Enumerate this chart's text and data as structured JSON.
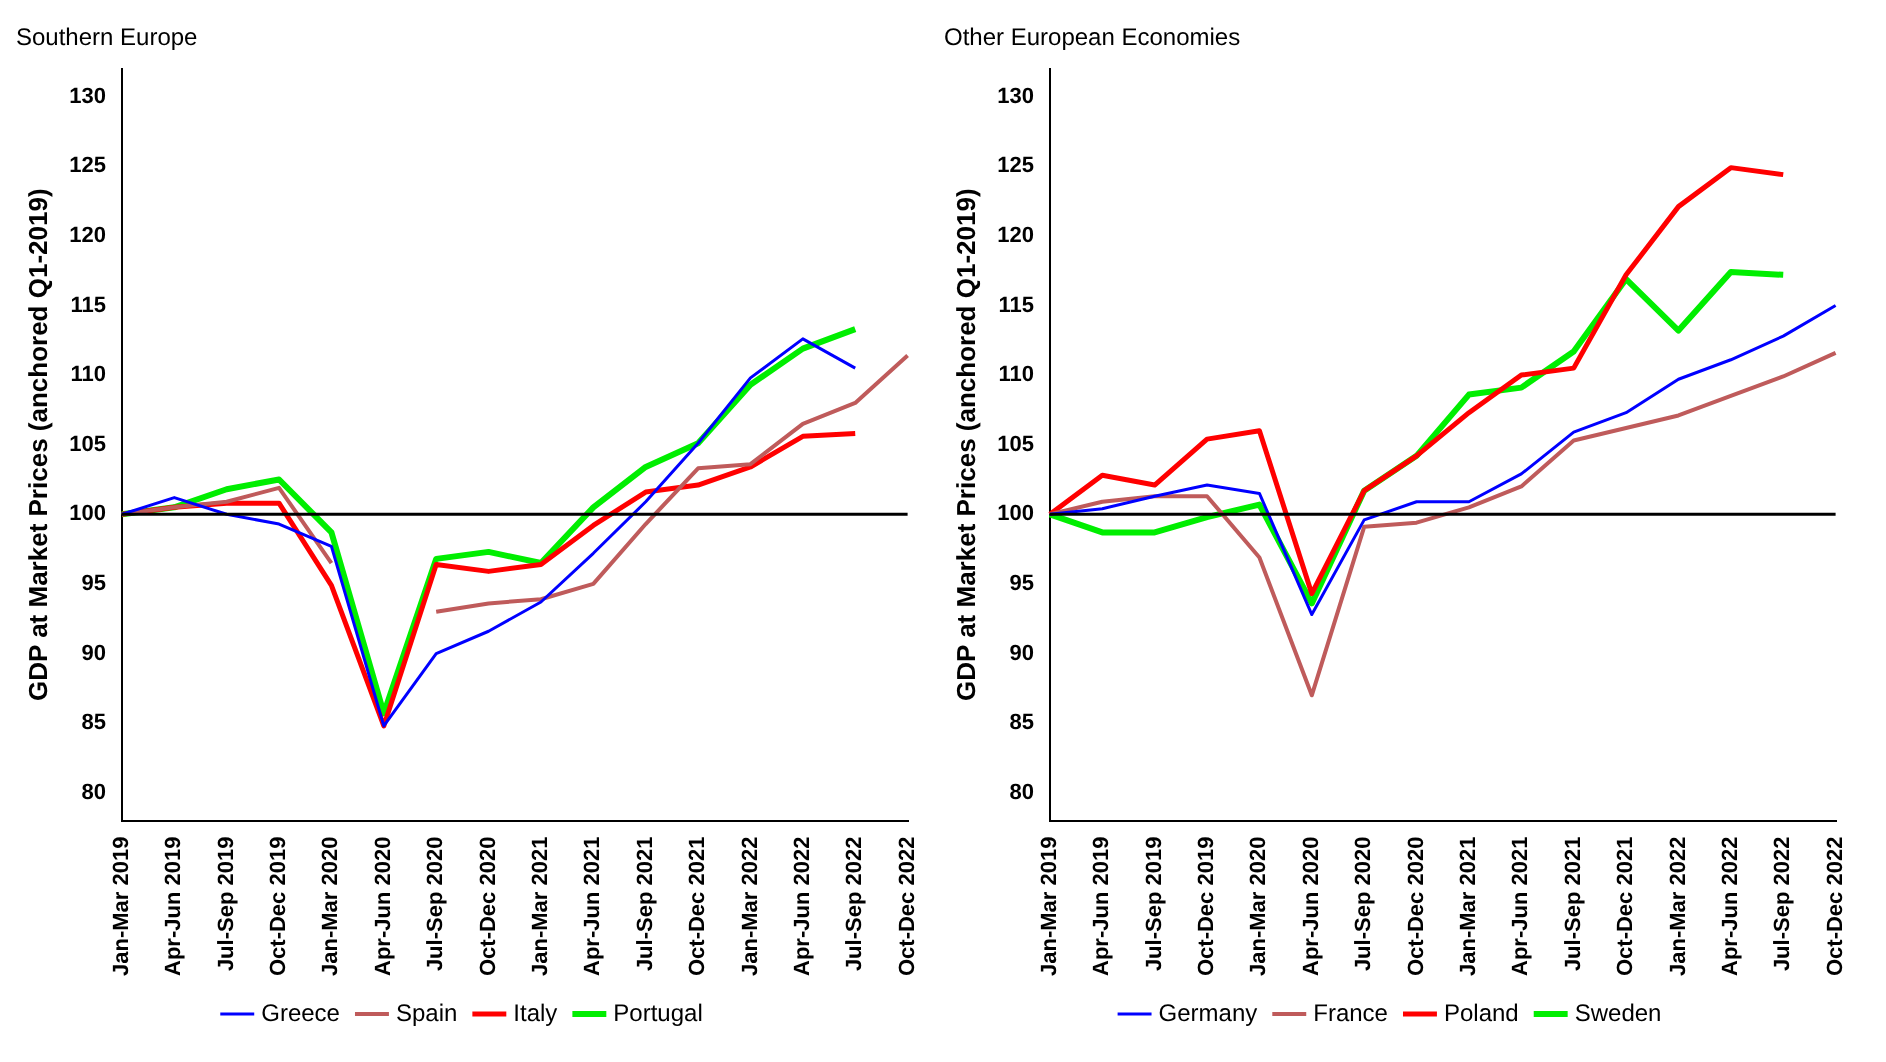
{
  "chart_data": [
    {
      "type": "line",
      "title": "Southern Europe",
      "ylabel": "GDP at Market Prices (anchored Q1-2019)",
      "categories": [
        "Jan-Mar 2019",
        "Apr-Jun 2019",
        "Jul-Sep 2019",
        "Oct-Dec 2019",
        "Jan-Mar 2020",
        "Apr-Jun 2020",
        "Jul-Sep 2020",
        "Oct-Dec 2020",
        "Jan-Mar 2021",
        "Apr-Jun 2021",
        "Jul-Sep 2021",
        "Oct-Dec 2021",
        "Jan-Mar 2022",
        "Apr-Jun 2022",
        "Jul-Sep 2022",
        "Oct-Dec 2022"
      ],
      "series": [
        {
          "name": "Greece",
          "color": "#0000ff",
          "values": [
            100,
            101.2,
            100,
            99.3,
            97.7,
            84.8,
            90,
            91.6,
            93.7,
            97.2,
            100.9,
            105.1,
            109.8,
            112.6,
            110.5,
            null
          ]
        },
        {
          "name": "Spain",
          "color": "#bf5b5b",
          "values": [
            100,
            100.5,
            100.9,
            101.9,
            96.5,
            null,
            93,
            93.6,
            93.9,
            95,
            99.3,
            103.3,
            103.6,
            106.5,
            108,
            111.4
          ]
        },
        {
          "name": "Italy",
          "color": "#ff0000",
          "values": [
            100,
            100.5,
            100.8,
            100.8,
            94.9,
            84.8,
            96.4,
            95.9,
            96.4,
            99.2,
            101.6,
            102.1,
            103.4,
            105.6,
            105.8,
            null
          ]
        },
        {
          "name": "Portugal",
          "color": "#00ee00",
          "values": [
            100,
            100.5,
            101.8,
            102.5,
            98.7,
            85.7,
            96.8,
            97.3,
            96.5,
            100.5,
            103.4,
            105.1,
            109.3,
            111.9,
            113.3,
            null
          ]
        }
      ],
      "ylim": [
        78,
        132
      ],
      "yticks": [
        80,
        85,
        90,
        95,
        100,
        105,
        110,
        115,
        120,
        125,
        130
      ],
      "ref_lines": [
        {
          "axis": "y",
          "value": 100,
          "color": "#000000"
        }
      ],
      "grid": false,
      "legend": "bottom",
      "marker": "none",
      "line_style": "solid"
    },
    {
      "type": "line",
      "title": "Other European Economies",
      "ylabel": "GDP at Market Prices (anchored Q1-2019)",
      "categories": [
        "Jan-Mar 2019",
        "Apr-Jun 2019",
        "Jul-Sep 2019",
        "Oct-Dec 2019",
        "Jan-Mar 2020",
        "Apr-Jun 2020",
        "Jul-Sep 2020",
        "Oct-Dec 2020",
        "Jan-Mar 2021",
        "Apr-Jun 2021",
        "Jul-Sep 2021",
        "Oct-Dec 2021",
        "Jan-Mar 2022",
        "Apr-Jun 2022",
        "Jul-Sep 2022",
        "Oct-Dec 2022"
      ],
      "series": [
        {
          "name": "Germany",
          "color": "#0000ff",
          "values": [
            100,
            100.4,
            101.3,
            102.1,
            101.5,
            92.8,
            99.6,
            100.9,
            100.9,
            102.9,
            105.9,
            107.3,
            109.7,
            111.1,
            112.8,
            115
          ]
        },
        {
          "name": "France",
          "color": "#bf5b5b",
          "values": [
            100,
            100.9,
            101.3,
            101.3,
            96.9,
            87,
            99.1,
            99.4,
            100.5,
            102,
            105.3,
            106.2,
            107.1,
            108.5,
            109.9,
            111.6
          ]
        },
        {
          "name": "Poland",
          "color": "#ff0000",
          "values": [
            100,
            102.8,
            102.1,
            105.4,
            106,
            94.3,
            101.7,
            104.2,
            107.3,
            110,
            110.5,
            117.2,
            122.1,
            124.9,
            124.4,
            null
          ]
        },
        {
          "name": "Sweden",
          "color": "#00ee00",
          "values": [
            100,
            98.7,
            98.7,
            99.8,
            100.7,
            93.6,
            101.7,
            104.2,
            108.6,
            109.1,
            111.7,
            116.9,
            113.2,
            117.4,
            117.2,
            null
          ]
        }
      ],
      "ylim": [
        78,
        132
      ],
      "yticks": [
        80,
        85,
        90,
        95,
        100,
        105,
        110,
        115,
        120,
        125,
        130
      ],
      "ref_lines": [
        {
          "axis": "y",
          "value": 100,
          "color": "#000000"
        }
      ],
      "grid": false,
      "legend": "bottom",
      "marker": "none",
      "line_style": "solid"
    }
  ]
}
